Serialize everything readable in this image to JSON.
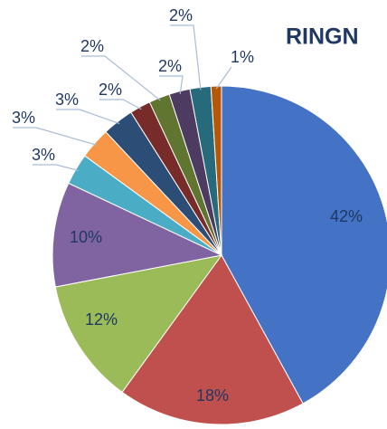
{
  "chart_data": {
    "type": "pie",
    "title": "RINGN",
    "values": [
      42,
      18,
      12,
      10,
      3,
      3,
      3,
      2,
      2,
      2,
      2,
      1
    ],
    "value_labels": [
      "42%",
      "18%",
      "12%",
      "10%",
      "3%",
      "3%",
      "3%",
      "2%",
      "2%",
      "2%",
      "2%",
      "1%"
    ],
    "colors": [
      "#4472c4",
      "#c0504d",
      "#9bbb59",
      "#8064a2",
      "#4bacc6",
      "#f79646",
      "#2c4d75",
      "#772c2a",
      "#5f7530",
      "#4d3b62",
      "#276a7c",
      "#b65708"
    ]
  }
}
